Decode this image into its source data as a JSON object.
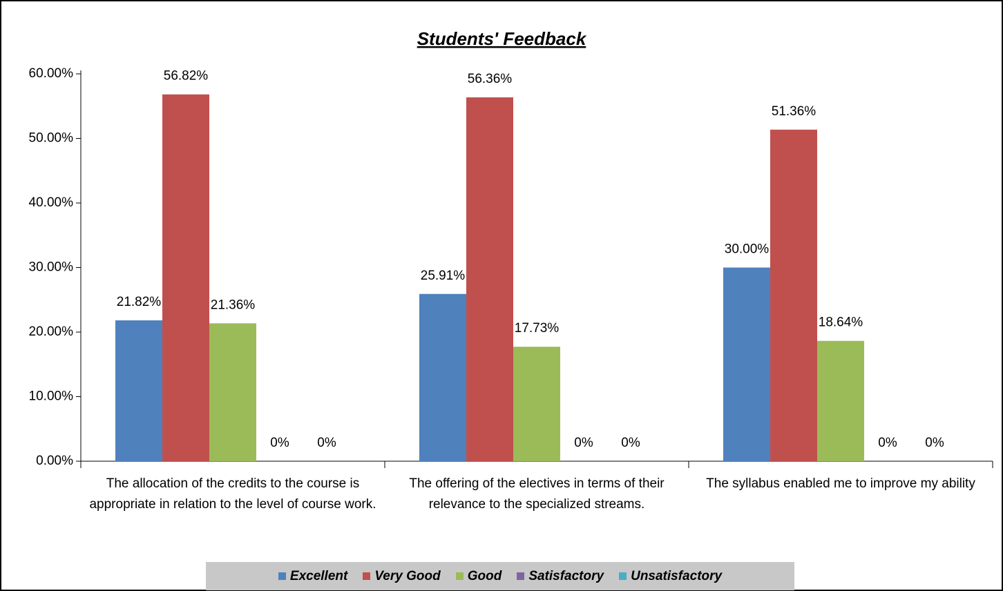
{
  "chart_data": {
    "type": "bar",
    "title": "Students' Feedback",
    "categories": [
      "The allocation of the credits to the course is appropriate in relation to the level of course work.",
      "The offering of the electives in terms of their relevance to the specialized streams.",
      "The syllabus enabled me to improve my ability"
    ],
    "series": [
      {
        "name": "Excellent",
        "color": "#4f81bd",
        "values": [
          21.82,
          25.91,
          30.0
        ],
        "value_labels": [
          "21.82%",
          "25.91%",
          "30.00%"
        ]
      },
      {
        "name": "Very Good",
        "color": "#c0504d",
        "values": [
          56.82,
          56.36,
          51.36
        ],
        "value_labels": [
          "56.82%",
          "56.36%",
          "51.36%"
        ]
      },
      {
        "name": "Good",
        "color": "#9bbb59",
        "values": [
          21.36,
          17.73,
          18.64
        ],
        "value_labels": [
          "21.36%",
          "17.73%",
          "18.64%"
        ]
      },
      {
        "name": "Satisfactory",
        "color": "#8064a2",
        "values": [
          0,
          0,
          0
        ],
        "value_labels": [
          "0%",
          "0%",
          "0%"
        ]
      },
      {
        "name": "Unsatisfactory",
        "color": "#4bacc6",
        "values": [
          0,
          0,
          0
        ],
        "value_labels": [
          "0%",
          "0%",
          "0%"
        ]
      }
    ],
    "ylim": [
      0,
      60
    ],
    "yticks": [
      {
        "value": 0,
        "label": "0.00%"
      },
      {
        "value": 10,
        "label": "10.00%"
      },
      {
        "value": 20,
        "label": "20.00%"
      },
      {
        "value": 30,
        "label": "30.00%"
      },
      {
        "value": 40,
        "label": "40.00%"
      },
      {
        "value": 50,
        "label": "50.00%"
      },
      {
        "value": 60,
        "label": "60.00%"
      }
    ],
    "legend": "bottom"
  }
}
